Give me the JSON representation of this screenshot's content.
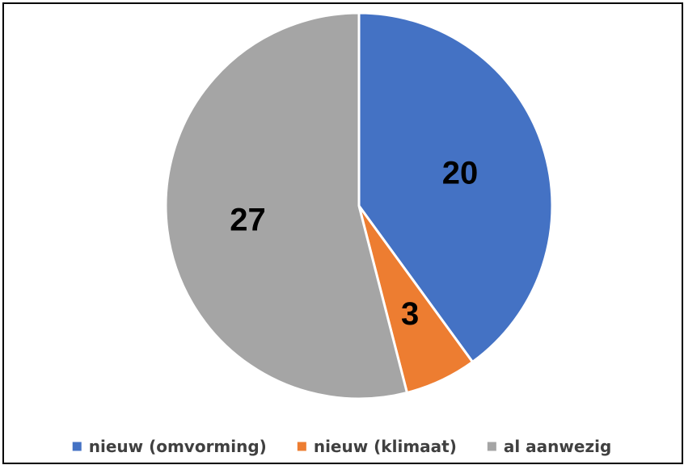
{
  "chart_data": {
    "type": "pie",
    "title": "",
    "categories": [
      "nieuw (omvorming)",
      "nieuw (klimaat)",
      "al aanwezig"
    ],
    "values": [
      20,
      3,
      27
    ],
    "data_labels": [
      "20",
      "3",
      "27"
    ],
    "colors": [
      "#4472C4",
      "#ED7D31",
      "#A5A5A5"
    ],
    "start_angle_deg": 0,
    "direction": "clockwise",
    "legend_position": "bottom"
  }
}
